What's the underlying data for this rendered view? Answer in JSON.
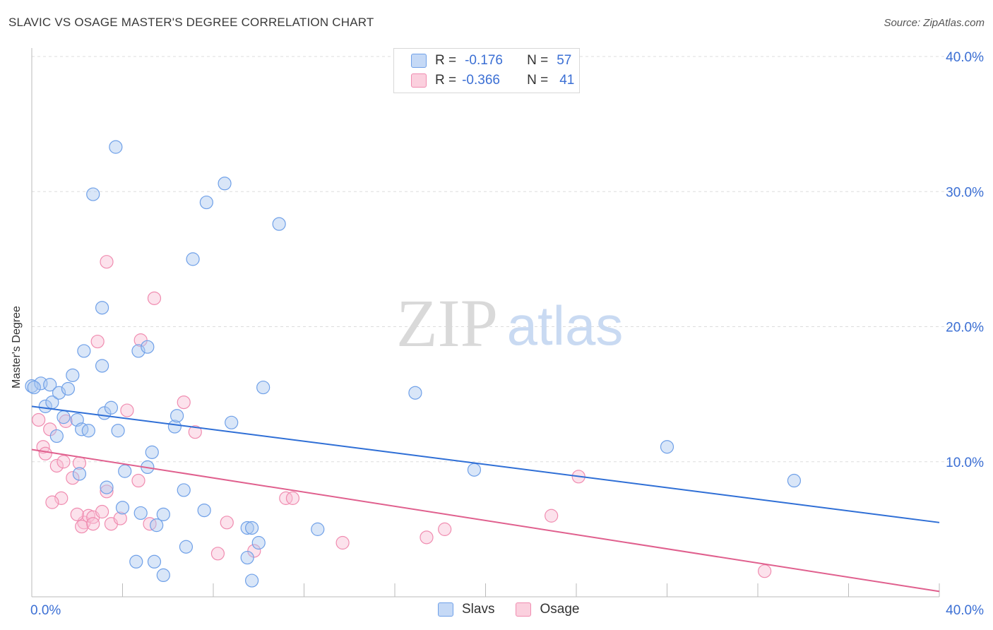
{
  "title": "SLAVIC VS OSAGE MASTER'S DEGREE CORRELATION CHART",
  "source": "Source: ZipAtlas.com",
  "watermark": {
    "zip": "ZIP",
    "atlas": "atlas"
  },
  "legend": {
    "rows": [
      {
        "r_label": "R =",
        "r_value": "-0.176",
        "n_label": "N =",
        "n_value": "57",
        "color": "#6fa0e8"
      },
      {
        "r_label": "R =",
        "r_value": "-0.366",
        "n_label": "N =",
        "n_value": "41",
        "color": "#f08cb0"
      }
    ]
  },
  "bottom_legend": {
    "slavs": "Slavs",
    "osage": "Osage"
  },
  "chart_data": {
    "type": "scatter",
    "title": "SLAVIC VS OSAGE MASTER'S DEGREE CORRELATION CHART",
    "ylabel": "Master's Degree",
    "xlabel": "",
    "xlim": [
      0,
      40
    ],
    "ylim": [
      0,
      40
    ],
    "x_tick_labels": [
      "0.0%",
      "40.0%"
    ],
    "y_tick_labels": [
      "10.0%",
      "20.0%",
      "30.0%",
      "40.0%"
    ],
    "y_ticks": [
      10,
      20,
      30,
      40
    ],
    "grid": true,
    "legend_position": "top-center",
    "series": [
      {
        "name": "Slavs",
        "color": "#6fa0e8",
        "r": -0.176,
        "n": 57,
        "trend": {
          "x": [
            0,
            40
          ],
          "y": [
            14.1,
            5.5
          ]
        },
        "points": [
          [
            0.0,
            15.6
          ],
          [
            0.4,
            15.8
          ],
          [
            0.8,
            15.7
          ],
          [
            0.6,
            14.1
          ],
          [
            0.9,
            14.4
          ],
          [
            1.2,
            15.1
          ],
          [
            1.6,
            15.4
          ],
          [
            1.8,
            16.4
          ],
          [
            1.1,
            11.9
          ],
          [
            1.4,
            13.3
          ],
          [
            2.0,
            13.1
          ],
          [
            2.2,
            12.4
          ],
          [
            2.5,
            12.3
          ],
          [
            2.3,
            18.2
          ],
          [
            3.1,
            21.4
          ],
          [
            3.1,
            17.1
          ],
          [
            2.7,
            29.8
          ],
          [
            3.7,
            33.3
          ],
          [
            3.2,
            13.6
          ],
          [
            3.5,
            14.0
          ],
          [
            3.8,
            12.3
          ],
          [
            4.1,
            9.3
          ],
          [
            3.3,
            8.1
          ],
          [
            4.0,
            6.6
          ],
          [
            2.1,
            9.1
          ],
          [
            4.7,
            18.2
          ],
          [
            5.1,
            18.5
          ],
          [
            5.3,
            10.7
          ],
          [
            5.1,
            9.6
          ],
          [
            4.8,
            6.2
          ],
          [
            5.5,
            5.3
          ],
          [
            5.8,
            6.1
          ],
          [
            4.6,
            2.6
          ],
          [
            5.4,
            2.6
          ],
          [
            5.8,
            1.6
          ],
          [
            6.3,
            12.6
          ],
          [
            6.4,
            13.4
          ],
          [
            6.7,
            7.9
          ],
          [
            6.8,
            3.7
          ],
          [
            7.1,
            25.0
          ],
          [
            7.6,
            6.4
          ],
          [
            7.7,
            29.2
          ],
          [
            8.5,
            30.6
          ],
          [
            8.8,
            12.9
          ],
          [
            10.2,
            15.5
          ],
          [
            10.9,
            27.6
          ],
          [
            9.5,
            5.1
          ],
          [
            9.7,
            5.1
          ],
          [
            9.5,
            2.9
          ],
          [
            10.0,
            4.0
          ],
          [
            9.7,
            1.2
          ],
          [
            12.6,
            5.0
          ],
          [
            16.9,
            15.1
          ],
          [
            19.5,
            9.4
          ],
          [
            28.0,
            11.1
          ],
          [
            33.6,
            8.6
          ],
          [
            0.1,
            15.5
          ]
        ]
      },
      {
        "name": "Osage",
        "color": "#f08cb0",
        "r": -0.366,
        "n": 41,
        "trend": {
          "x": [
            0,
            40
          ],
          "y": [
            10.9,
            0.4
          ]
        },
        "points": [
          [
            0.3,
            13.1
          ],
          [
            0.5,
            11.1
          ],
          [
            0.6,
            10.6
          ],
          [
            0.8,
            12.4
          ],
          [
            1.1,
            9.7
          ],
          [
            1.4,
            10.0
          ],
          [
            1.5,
            13.0
          ],
          [
            1.8,
            8.8
          ],
          [
            1.3,
            7.3
          ],
          [
            0.9,
            7.0
          ],
          [
            2.1,
            9.9
          ],
          [
            2.3,
            5.5
          ],
          [
            2.5,
            6.0
          ],
          [
            2.7,
            5.9
          ],
          [
            2.0,
            6.1
          ],
          [
            2.2,
            5.2
          ],
          [
            2.7,
            5.4
          ],
          [
            2.9,
            18.9
          ],
          [
            3.3,
            24.8
          ],
          [
            3.1,
            6.3
          ],
          [
            3.3,
            7.8
          ],
          [
            3.5,
            5.4
          ],
          [
            3.9,
            5.8
          ],
          [
            4.2,
            13.8
          ],
          [
            4.7,
            8.6
          ],
          [
            4.8,
            19.0
          ],
          [
            5.2,
            5.4
          ],
          [
            5.4,
            22.1
          ],
          [
            6.7,
            14.4
          ],
          [
            7.2,
            12.2
          ],
          [
            8.2,
            3.2
          ],
          [
            8.6,
            5.5
          ],
          [
            9.8,
            3.4
          ],
          [
            11.2,
            7.3
          ],
          [
            11.5,
            7.3
          ],
          [
            13.7,
            4.0
          ],
          [
            17.4,
            4.4
          ],
          [
            18.2,
            5.0
          ],
          [
            22.9,
            6.0
          ],
          [
            24.1,
            8.9
          ],
          [
            32.3,
            1.9
          ]
        ]
      }
    ]
  }
}
